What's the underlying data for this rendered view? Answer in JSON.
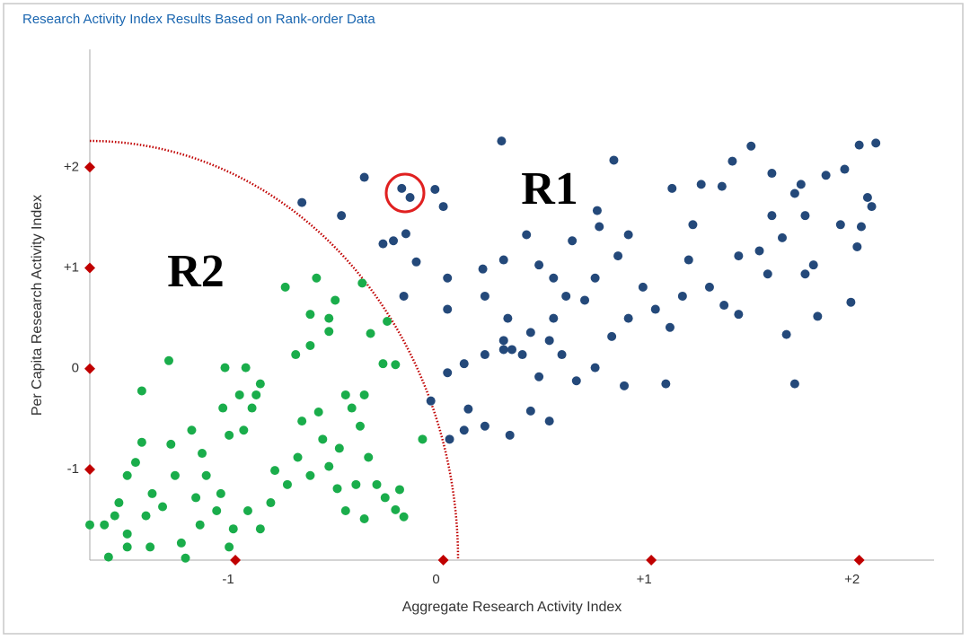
{
  "chart_data": {
    "type": "scatter",
    "title": "Research Activity Index Results Based on Rank-order Data",
    "x_label": "Aggregate Research Activity Index",
    "y_label": "Per Capita Research Activity Index",
    "annotations": [
      "R1",
      "R2"
    ],
    "xlim": [
      -1.7,
      2.36
    ],
    "ylim": [
      -1.9,
      3.17
    ],
    "xticks": [
      -1,
      0,
      {
        "value": 1,
        "label": "+1"
      },
      {
        "value": 2,
        "label": "+2"
      }
    ],
    "yticks": [
      -1,
      0,
      {
        "value": 1,
        "label": "+1"
      },
      {
        "value": 2,
        "label": "+2"
      }
    ],
    "tick_color": "#c00000",
    "series": [
      {
        "color": "#24497a",
        "x": [
          0.28,
          0.82,
          -0.38,
          -0.2,
          -0.16,
          -0.04,
          -0.68,
          -0.49,
          0.0,
          -0.18,
          -0.29,
          -0.24,
          -0.13,
          0.02,
          -0.19,
          0.02,
          0.19,
          0.29,
          0.4,
          0.46,
          0.53,
          0.2,
          0.31,
          0.42,
          0.33,
          0.51,
          0.59,
          0.62,
          0.75,
          0.74,
          0.84,
          0.73,
          0.68,
          0.53,
          0.57,
          0.64,
          0.73,
          0.81,
          0.89,
          0.96,
          0.87,
          1.07,
          1.09,
          1.15,
          1.1,
          1.24,
          1.2,
          1.18,
          1.28,
          1.35,
          1.39,
          1.48,
          1.34,
          1.42,
          1.52,
          1.58,
          1.63,
          1.58,
          1.69,
          1.74,
          1.72,
          1.84,
          1.93,
          2.0,
          2.08,
          2.04,
          2.06,
          2.01,
          1.99,
          1.96,
          1.91,
          1.78,
          1.74,
          1.8,
          1.65,
          1.69,
          1.56,
          1.42,
          1.02,
          0.46,
          0.42,
          0.51,
          0.32,
          0.2,
          0.12,
          0.1,
          0.03,
          -0.06,
          0.02,
          0.1,
          0.2,
          0.29,
          0.38,
          0.29,
          0.89
        ],
        "y": [
          2.26,
          2.07,
          1.9,
          1.79,
          1.7,
          1.78,
          1.65,
          1.52,
          1.61,
          1.34,
          1.24,
          1.27,
          1.06,
          0.9,
          0.72,
          0.59,
          0.99,
          1.08,
          1.33,
          1.03,
          0.9,
          0.72,
          0.5,
          0.36,
          0.19,
          0.28,
          0.72,
          1.27,
          1.41,
          1.57,
          1.12,
          0.9,
          0.68,
          0.5,
          0.14,
          -0.12,
          0.01,
          0.32,
          0.5,
          0.81,
          -0.17,
          -0.15,
          0.41,
          0.72,
          1.79,
          1.83,
          1.43,
          1.08,
          0.81,
          0.63,
          2.06,
          2.21,
          1.81,
          1.12,
          1.17,
          1.52,
          1.3,
          1.94,
          1.74,
          1.52,
          1.83,
          1.92,
          1.98,
          2.22,
          2.24,
          1.7,
          1.61,
          1.41,
          1.21,
          0.66,
          1.43,
          1.03,
          0.94,
          0.52,
          0.34,
          -0.15,
          0.94,
          0.54,
          0.59,
          -0.08,
          -0.42,
          -0.52,
          -0.66,
          -0.57,
          -0.4,
          -0.61,
          -0.7,
          -0.32,
          -0.04,
          0.05,
          0.14,
          0.19,
          0.14,
          0.28,
          1.33
        ]
      },
      {
        "color": "#1aad4b",
        "x": [
          -0.76,
          -0.61,
          -0.52,
          -0.64,
          -0.55,
          -0.64,
          -0.71,
          -0.39,
          -0.35,
          -0.27,
          -0.29,
          -0.23,
          -0.1,
          -1.32,
          -1.45,
          -1.05,
          -0.95,
          -0.88,
          -0.98,
          -1.06,
          -0.92,
          -0.96,
          -1.03,
          -1.21,
          -1.31,
          -1.45,
          -1.52,
          -1.48,
          -1.4,
          -1.56,
          -1.63,
          -1.7,
          -1.61,
          -1.52,
          -1.41,
          -1.35,
          -1.26,
          -1.24,
          -1.17,
          -1.19,
          -1.14,
          -1.09,
          -1.07,
          -1.01,
          -1.03,
          -0.94,
          -0.88,
          -0.83,
          -0.81,
          -0.75,
          -0.7,
          -0.68,
          -0.6,
          -0.58,
          -0.55,
          -0.64,
          -0.51,
          -0.47,
          -0.38,
          -0.42,
          -0.36,
          -0.4,
          -0.44,
          -0.47,
          -0.38,
          -0.5,
          -0.32,
          -0.28,
          -0.23,
          -0.19,
          -0.21,
          -0.55,
          -0.9,
          -1.29,
          -1.16,
          -1.43,
          -1.58,
          -1.52
        ],
        "y": [
          0.81,
          0.9,
          0.68,
          0.54,
          0.5,
          0.23,
          0.14,
          0.85,
          0.35,
          0.47,
          0.05,
          0.04,
          -0.7,
          0.08,
          -0.22,
          0.01,
          0.01,
          -0.15,
          -0.26,
          -0.39,
          -0.39,
          -0.61,
          -0.66,
          -0.61,
          -0.75,
          -0.73,
          -1.06,
          -0.93,
          -1.24,
          -1.33,
          -1.55,
          -1.55,
          -1.87,
          -1.64,
          -1.77,
          -1.37,
          -1.73,
          -1.88,
          -1.55,
          -1.28,
          -1.06,
          -1.41,
          -1.24,
          -1.59,
          -1.77,
          -1.41,
          -1.59,
          -1.33,
          -1.01,
          -1.15,
          -0.88,
          -0.52,
          -0.43,
          -0.7,
          -0.97,
          -1.06,
          -1.19,
          -1.41,
          -1.49,
          -1.15,
          -0.88,
          -0.57,
          -0.39,
          -0.26,
          -0.26,
          -0.79,
          -1.15,
          -1.28,
          -1.4,
          -1.47,
          -1.2,
          0.37,
          -0.26,
          -1.06,
          -0.84,
          -1.46,
          -1.46,
          -1.77
        ]
      }
    ]
  }
}
